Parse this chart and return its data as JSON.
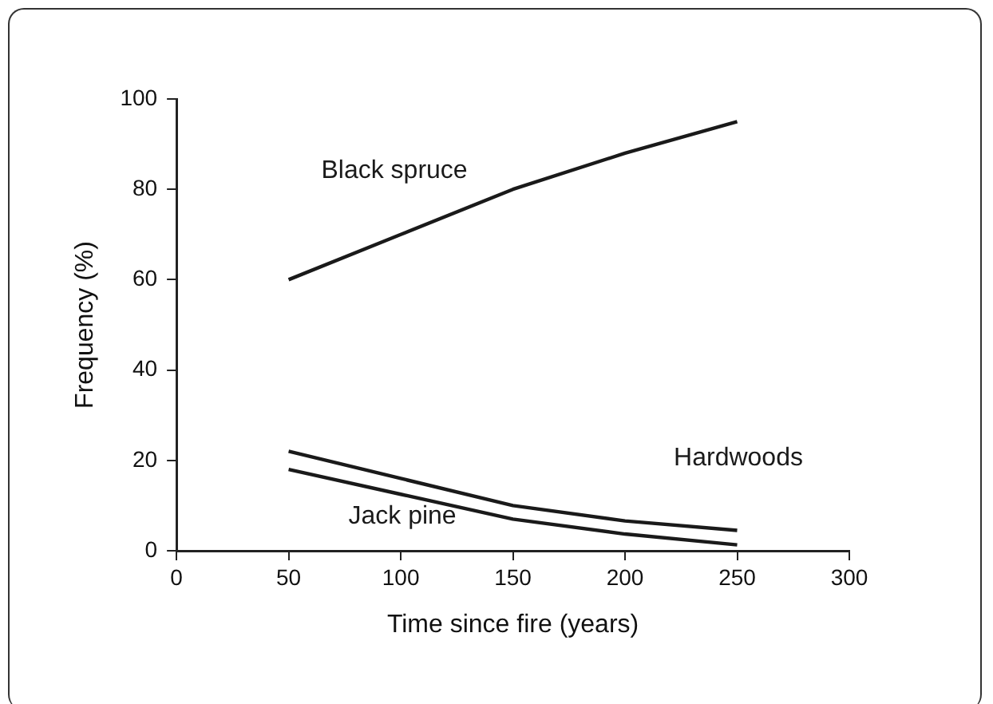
{
  "chart_data": {
    "type": "line",
    "xlabel": "Time since fire (years)",
    "ylabel": "Frequency (%)",
    "x": [
      50,
      100,
      150,
      200,
      250
    ],
    "series": [
      {
        "name": "Black spruce",
        "color": "#1a1a1a",
        "values": [
          60,
          70,
          80,
          88,
          95
        ]
      },
      {
        "name": "Hardwoods",
        "color": "#1a1a1a",
        "values": [
          22,
          16,
          10,
          6.6,
          4.5
        ]
      },
      {
        "name": "Jack pine",
        "color": "#1a1a1a",
        "values": [
          18,
          12.5,
          7,
          3.7,
          1.3
        ]
      }
    ],
    "xlim": [
      0,
      300
    ],
    "xticks": [
      0,
      50,
      100,
      150,
      200,
      250,
      300
    ],
    "ylim": [
      0,
      100
    ],
    "yticks": [
      0,
      20,
      40,
      60,
      80,
      100
    ],
    "grid": false,
    "legend": false,
    "marker": "none",
    "line_style": "solid"
  }
}
